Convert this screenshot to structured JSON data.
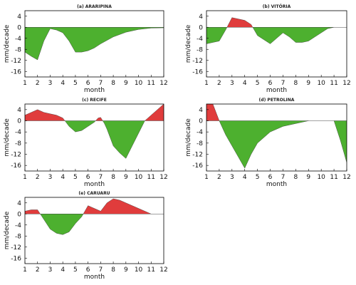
{
  "colors": {
    "positive": "#e03c3c",
    "negative": "#4db02f",
    "zero_line": "#444444"
  },
  "chart_data": [
    {
      "type": "area",
      "title": "(a) ARARIPINA",
      "xlabel": "month",
      "ylabel": "mm/decade",
      "xlim": [
        1,
        12
      ],
      "ylim": [
        -18,
        6
      ],
      "xticks": [
        "1",
        "2",
        "3",
        "4",
        "5",
        "6",
        "7",
        "8",
        "9",
        "10",
        "11",
        "12"
      ],
      "yticks": [
        "4",
        "0",
        "-4",
        "-8",
        "-12",
        "-16"
      ],
      "series": [
        {
          "x": [
            1,
            1.5,
            2,
            2.5,
            3,
            3.5,
            4,
            4.5,
            5,
            5.5,
            6,
            6.5,
            7,
            8,
            9,
            10,
            11,
            12
          ],
          "y": [
            -9,
            -10.5,
            -11.8,
            -5,
            -0.5,
            -1,
            -2,
            -5,
            -9,
            -9,
            -8.5,
            -7.5,
            -6,
            -3.5,
            -1.8,
            -0.8,
            -0.3,
            -0.2
          ]
        }
      ]
    },
    {
      "type": "area",
      "title": "(b) VITÓRIA",
      "xlabel": "month",
      "ylabel": "mm/decade",
      "xlim": [
        1,
        12
      ],
      "ylim": [
        -18,
        6
      ],
      "xticks": [
        "1",
        "2",
        "3",
        "4",
        "5",
        "6",
        "7",
        "8",
        "9",
        "10",
        "11",
        "12"
      ],
      "yticks": [
        "4",
        "0",
        "-4",
        "-8",
        "-12",
        "-16"
      ],
      "series": [
        {
          "x": [
            1,
            1.5,
            2,
            2.5,
            3,
            3.5,
            4,
            4.5,
            5,
            5.5,
            6,
            6.5,
            7,
            7.5,
            8,
            8.5,
            9,
            9.5,
            10,
            10.5,
            11,
            12
          ],
          "y": [
            -6,
            -5.5,
            -5,
            -1,
            3.5,
            3,
            2.5,
            1,
            -3,
            -4.5,
            -6,
            -4,
            -2,
            -3.5,
            -5.5,
            -5.5,
            -5,
            -3.5,
            -2,
            -0.5,
            0,
            0
          ]
        }
      ]
    },
    {
      "type": "area",
      "title": "(c) RECIFE",
      "xlabel": "month",
      "ylabel": "mm/decade",
      "xlim": [
        1,
        12
      ],
      "ylim": [
        -18,
        6
      ],
      "xticks": [
        "1",
        "2",
        "3",
        "4",
        "5",
        "6",
        "7",
        "8",
        "9",
        "10",
        "11",
        "12"
      ],
      "yticks": [
        "4",
        "0",
        "-4",
        "-8",
        "-12",
        "-16"
      ],
      "series": [
        {
          "x": [
            1,
            1.5,
            2,
            2.5,
            3,
            3.5,
            4,
            4.5,
            5,
            5.5,
            6,
            6.5,
            6.8,
            7,
            7.3,
            7.5,
            8,
            8.5,
            9,
            9.5,
            10,
            10.5,
            11,
            11.5,
            12
          ],
          "y": [
            2,
            3,
            4,
            3,
            2.5,
            2,
            1,
            -2,
            -4,
            -3.5,
            -2,
            -0.5,
            1,
            1.2,
            -1,
            -3,
            -9,
            -11.5,
            -13.5,
            -9,
            -4.5,
            0,
            2,
            4,
            6
          ]
        }
      ]
    },
    {
      "type": "area",
      "title": "(d) PETROLINA",
      "xlabel": "month",
      "ylabel": "mm/decade",
      "xlim": [
        1,
        12
      ],
      "ylim": [
        -18,
        6
      ],
      "xticks": [
        "1",
        "2",
        "3",
        "4",
        "5",
        "6",
        "7",
        "8",
        "9",
        "10",
        "11",
        "12"
      ],
      "yticks": [
        "4",
        "0",
        "-4",
        "-8",
        "-12",
        "-16"
      ],
      "series": [
        {
          "x": [
            1,
            1.5,
            2,
            2.5,
            3,
            3.5,
            4,
            4.5,
            5,
            6,
            7,
            8,
            9
          ],
          "y": [
            6,
            6,
            0,
            -5,
            -9,
            -13,
            -17,
            -12,
            -8,
            -4,
            -2,
            -1,
            0
          ]
        },
        {
          "x": [
            11,
            11.5,
            12
          ],
          "y": [
            0,
            -7,
            -15
          ]
        }
      ]
    },
    {
      "type": "area",
      "title": "(e) CARUARU",
      "xlabel": "month",
      "ylabel": "mm/decade",
      "xlim": [
        1,
        12
      ],
      "ylim": [
        -18,
        6
      ],
      "xticks": [
        "1",
        "2",
        "3",
        "4",
        "5",
        "6",
        "7",
        "8",
        "9",
        "10",
        "11",
        "12"
      ],
      "yticks": [
        "4",
        "0",
        "-4",
        "-8",
        "-12",
        "-16"
      ],
      "series": [
        {
          "x": [
            1,
            1.5,
            2,
            2.5,
            3,
            3.5,
            4,
            4.5,
            5,
            5.5,
            6,
            6.5,
            7,
            7.5,
            8,
            8.5,
            9,
            9.5,
            10,
            10.5,
            11,
            11.5,
            12
          ],
          "y": [
            1,
            1.5,
            1.5,
            -2,
            -5.5,
            -7,
            -7.5,
            -6.5,
            -3.5,
            -1,
            3,
            2,
            1,
            4,
            5.5,
            5,
            4,
            3,
            2,
            1,
            0,
            0,
            0
          ]
        }
      ]
    }
  ]
}
